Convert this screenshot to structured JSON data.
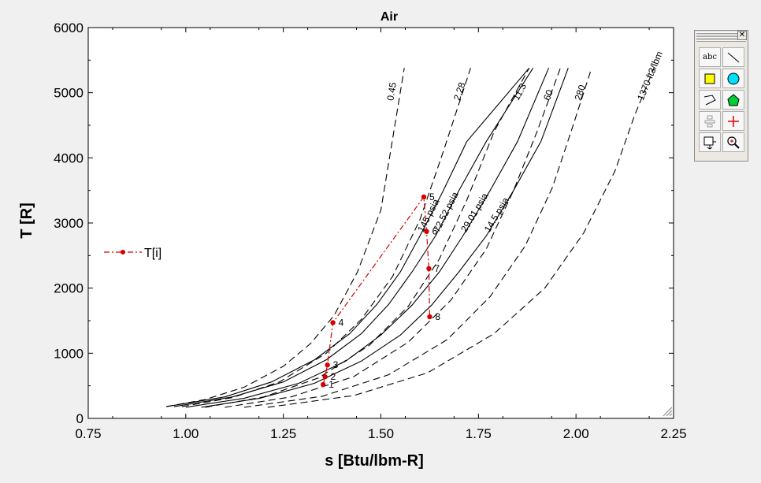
{
  "chart_data": {
    "type": "line",
    "title": "Air",
    "xlabel": "s [Btu/lbm-R]",
    "ylabel": "T [R]",
    "xlim": [
      0.75,
      2.25
    ],
    "ylim": [
      0,
      6000
    ],
    "x_ticks": [
      "0.75",
      "1.00",
      "1.25",
      "1.50",
      "1.75",
      "2.00",
      "2.25"
    ],
    "y_ticks": [
      "0",
      "1000",
      "2000",
      "3000",
      "4000",
      "5000",
      "6000"
    ],
    "grid": false,
    "legend": {
      "position": "left-middle",
      "entries": [
        {
          "label": "T[i]",
          "color": "#d40000",
          "style": "dash-dot with markers"
        }
      ]
    },
    "isochores": [
      {
        "label": "0.45",
        "x": [
          0.95,
          1.05,
          1.15,
          1.25,
          1.32,
          1.38,
          1.44,
          1.5,
          1.56
        ],
        "y": [
          180,
          290,
          480,
          800,
          1150,
          1580,
          2250,
          3200,
          5380
        ]
      },
      {
        "label": "2.28",
        "x": [
          0.99,
          1.12,
          1.24,
          1.36,
          1.45,
          1.53,
          1.6,
          1.66,
          1.73
        ],
        "y": [
          180,
          320,
          560,
          1000,
          1520,
          2180,
          3050,
          4100,
          5380
        ]
      },
      {
        "label": "11.3",
        "x": [
          1.05,
          1.2,
          1.34,
          1.47,
          1.57,
          1.65,
          1.72,
          1.79,
          1.88
        ],
        "y": [
          170,
          330,
          620,
          1120,
          1720,
          2450,
          3350,
          4400,
          5380
        ]
      },
      {
        "label": "60",
        "x": [
          1.1,
          1.27,
          1.43,
          1.57,
          1.68,
          1.77,
          1.84,
          1.9,
          1.96
        ],
        "y": [
          170,
          330,
          640,
          1170,
          1820,
          2600,
          3500,
          4400,
          5380
        ]
      },
      {
        "label": "280",
        "x": [
          1.15,
          1.35,
          1.52,
          1.67,
          1.78,
          1.87,
          1.94,
          1.99,
          2.04
        ],
        "y": [
          170,
          340,
          670,
          1210,
          1870,
          2650,
          3550,
          4450,
          5380
        ]
      },
      {
        "label": "1370 ft3/lbm",
        "x": [
          1.21,
          1.43,
          1.62,
          1.79,
          1.92,
          2.02,
          2.1,
          2.15,
          2.2
        ],
        "y": [
          170,
          350,
          700,
          1300,
          2000,
          2850,
          3800,
          4650,
          5380
        ]
      }
    ],
    "isobars": [
      {
        "label": "145 psia",
        "x": [
          0.95,
          1.1,
          1.22,
          1.33,
          1.42,
          1.49,
          1.55,
          1.6,
          1.66,
          1.72,
          1.88
        ],
        "y": [
          180,
          330,
          560,
          900,
          1300,
          1750,
          2250,
          2800,
          3500,
          4250,
          5380
        ]
      },
      {
        "label": "72.52 psia",
        "x": [
          0.97,
          1.12,
          1.25,
          1.36,
          1.45,
          1.52,
          1.58,
          1.64,
          1.7,
          1.77,
          1.89
        ],
        "y": [
          180,
          330,
          560,
          900,
          1300,
          1750,
          2250,
          2800,
          3500,
          4250,
          5380
        ]
      },
      {
        "label": "29.01 psia",
        "x": [
          1.0,
          1.15,
          1.29,
          1.41,
          1.5,
          1.58,
          1.65,
          1.71,
          1.78,
          1.85,
          1.93
        ],
        "y": [
          170,
          310,
          540,
          880,
          1280,
          1740,
          2250,
          2800,
          3500,
          4250,
          5380
        ]
      },
      {
        "label": "14.5 psia",
        "x": [
          1.04,
          1.19,
          1.33,
          1.45,
          1.55,
          1.63,
          1.7,
          1.77,
          1.84,
          1.91,
          1.98
        ],
        "y": [
          170,
          310,
          540,
          880,
          1280,
          1740,
          2250,
          2800,
          3500,
          4250,
          5380
        ]
      }
    ],
    "series": [
      {
        "name": "T[i]",
        "color": "#d40000",
        "labels": [
          "1",
          "2",
          "3",
          "4",
          "5",
          "6",
          "7",
          "8"
        ],
        "x": [
          1.352,
          1.357,
          1.363,
          1.377,
          1.61,
          1.617,
          1.623,
          1.625
        ],
        "y": [
          520,
          640,
          820,
          1470,
          3400,
          2870,
          2300,
          1560
        ]
      }
    ]
  }
}
